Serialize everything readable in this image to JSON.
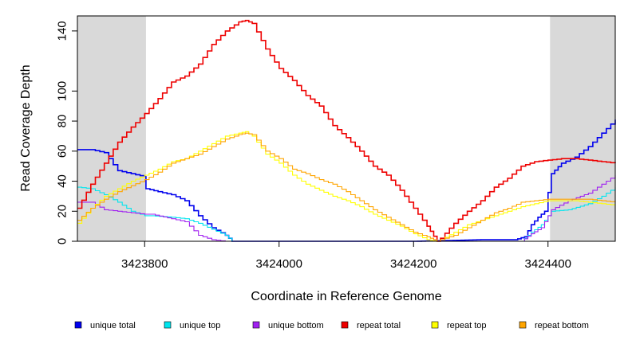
{
  "chart_data": {
    "type": "line",
    "xlabel": "Coordinate in Reference Genome",
    "ylabel": "Read Coverage Depth",
    "xlim": [
      3423700,
      3424500
    ],
    "ylim": [
      0,
      150
    ],
    "x_ticks": [
      3423800,
      3424000,
      3424200,
      3424400
    ],
    "x_tick_labels": [
      "3423800",
      "3424000",
      "3424200",
      "3424400"
    ],
    "y_ticks": [
      0,
      20,
      40,
      60,
      80,
      100,
      140
    ],
    "y_tick_labels": [
      "0",
      "20",
      "40",
      "60",
      "80",
      "100",
      "140"
    ],
    "shaded_regions": [
      [
        3423700,
        3423802
      ],
      [
        3424403,
        3424500
      ]
    ],
    "shade_color": "#d9d9d9",
    "legend_position": "bottom",
    "series": [
      {
        "name": "unique total",
        "color": "#0000ee",
        "x": [
          3423700,
          3423720,
          3423740,
          3423760,
          3423780,
          3423800,
          3423802,
          3423820,
          3423840,
          3423860,
          3423880,
          3423900,
          3423920,
          3423930,
          3423940,
          3424000,
          3424100,
          3424200,
          3424300,
          3424350,
          3424365,
          3424375,
          3424385,
          3424395,
          3424405,
          3424420,
          3424440,
          3424460,
          3424480,
          3424500
        ],
        "values": [
          61,
          61,
          59,
          47,
          45,
          43,
          35,
          33,
          31,
          27,
          17,
          9,
          4,
          0,
          0,
          0,
          0,
          0,
          1,
          1,
          3,
          11,
          16,
          20,
          45,
          52,
          56,
          63,
          72,
          81
        ]
      },
      {
        "name": "unique top",
        "color": "#00e5ee",
        "x": [
          3423700,
          3423720,
          3423740,
          3423760,
          3423780,
          3423800,
          3423810,
          3423840,
          3423860,
          3423880,
          3423900,
          3423920,
          3423930,
          3423940,
          3424100,
          3424300,
          3424360,
          3424375,
          3424390,
          3424405,
          3424430,
          3424460,
          3424480,
          3424500
        ],
        "values": [
          36,
          35,
          31,
          26,
          20,
          17,
          17,
          16,
          15,
          12,
          8,
          4,
          0,
          0,
          0,
          0,
          0,
          6,
          11,
          20,
          21,
          25,
          30,
          36
        ]
      },
      {
        "name": "unique bottom",
        "color": "#a020f0",
        "x": [
          3423700,
          3423720,
          3423740,
          3423760,
          3423780,
          3423800,
          3423810,
          3423840,
          3423860,
          3423880,
          3423900,
          3423920,
          3423930,
          3423940,
          3424100,
          3424300,
          3424360,
          3424375,
          3424390,
          3424405,
          3424430,
          3424460,
          3424480,
          3424500
        ],
        "values": [
          26,
          26,
          21,
          20,
          19,
          18,
          18,
          15,
          13,
          4,
          1,
          0,
          0,
          0,
          0,
          0,
          0,
          5,
          9,
          21,
          27,
          32,
          38,
          44
        ]
      },
      {
        "name": "repeat total",
        "color": "#ee0000",
        "x": [
          3423700,
          3423720,
          3423740,
          3423760,
          3423780,
          3423800,
          3423820,
          3423840,
          3423860,
          3423880,
          3423900,
          3423920,
          3423940,
          3423950,
          3423960,
          3423980,
          3424000,
          3424020,
          3424040,
          3424060,
          3424080,
          3424100,
          3424120,
          3424140,
          3424160,
          3424180,
          3424200,
          3424220,
          3424235,
          3424240,
          3424260,
          3424280,
          3424300,
          3424320,
          3424340,
          3424360,
          3424380,
          3424400,
          3424420,
          3424440,
          3424460,
          3424480,
          3424500
        ],
        "values": [
          22,
          38,
          52,
          66,
          76,
          85,
          95,
          106,
          110,
          118,
          131,
          140,
          146,
          147,
          145,
          128,
          115,
          107,
          97,
          90,
          77,
          69,
          60,
          50,
          44,
          34,
          22,
          10,
          0,
          2,
          12,
          20,
          27,
          36,
          42,
          50,
          53,
          54,
          55,
          55,
          54,
          53,
          52
        ]
      },
      {
        "name": "repeat top",
        "color": "#ffff00",
        "x": [
          3423700,
          3423720,
          3423740,
          3423760,
          3423780,
          3423800,
          3423820,
          3423840,
          3423860,
          3423880,
          3423900,
          3423920,
          3423940,
          3423950,
          3423960,
          3423980,
          3424000,
          3424020,
          3424040,
          3424060,
          3424080,
          3424100,
          3424120,
          3424140,
          3424160,
          3424180,
          3424200,
          3424220,
          3424235,
          3424240,
          3424260,
          3424280,
          3424300,
          3424320,
          3424340,
          3424360,
          3424380,
          3424400,
          3424420,
          3424440,
          3424460,
          3424480,
          3424500
        ],
        "values": [
          12,
          22,
          30,
          35,
          40,
          44,
          48,
          53,
          55,
          60,
          65,
          70,
          72,
          73,
          70,
          58,
          52,
          44,
          38,
          34,
          30,
          27,
          23,
          18,
          14,
          10,
          5,
          1,
          0,
          1,
          6,
          11,
          14,
          17,
          20,
          23,
          25,
          27,
          27,
          27,
          26,
          25,
          24
        ]
      },
      {
        "name": "repeat bottom",
        "color": "#ffa500",
        "x": [
          3423700,
          3423720,
          3423740,
          3423760,
          3423780,
          3423800,
          3423820,
          3423840,
          3423860,
          3423880,
          3423900,
          3423920,
          3423940,
          3423950,
          3423960,
          3423980,
          3424000,
          3424020,
          3424040,
          3424060,
          3424080,
          3424100,
          3424120,
          3424140,
          3424160,
          3424180,
          3424200,
          3424220,
          3424235,
          3424240,
          3424260,
          3424280,
          3424300,
          3424320,
          3424340,
          3424360,
          3424380,
          3424400,
          3424420,
          3424440,
          3424460,
          3424480,
          3424500
        ],
        "values": [
          14,
          22,
          28,
          33,
          37,
          41,
          46,
          52,
          55,
          58,
          63,
          68,
          71,
          72,
          71,
          60,
          55,
          48,
          45,
          41,
          38,
          33,
          27,
          21,
          16,
          11,
          6,
          3,
          0,
          1,
          4,
          9,
          14,
          19,
          22,
          26,
          27,
          28,
          28,
          28,
          28,
          27,
          26
        ]
      }
    ]
  }
}
